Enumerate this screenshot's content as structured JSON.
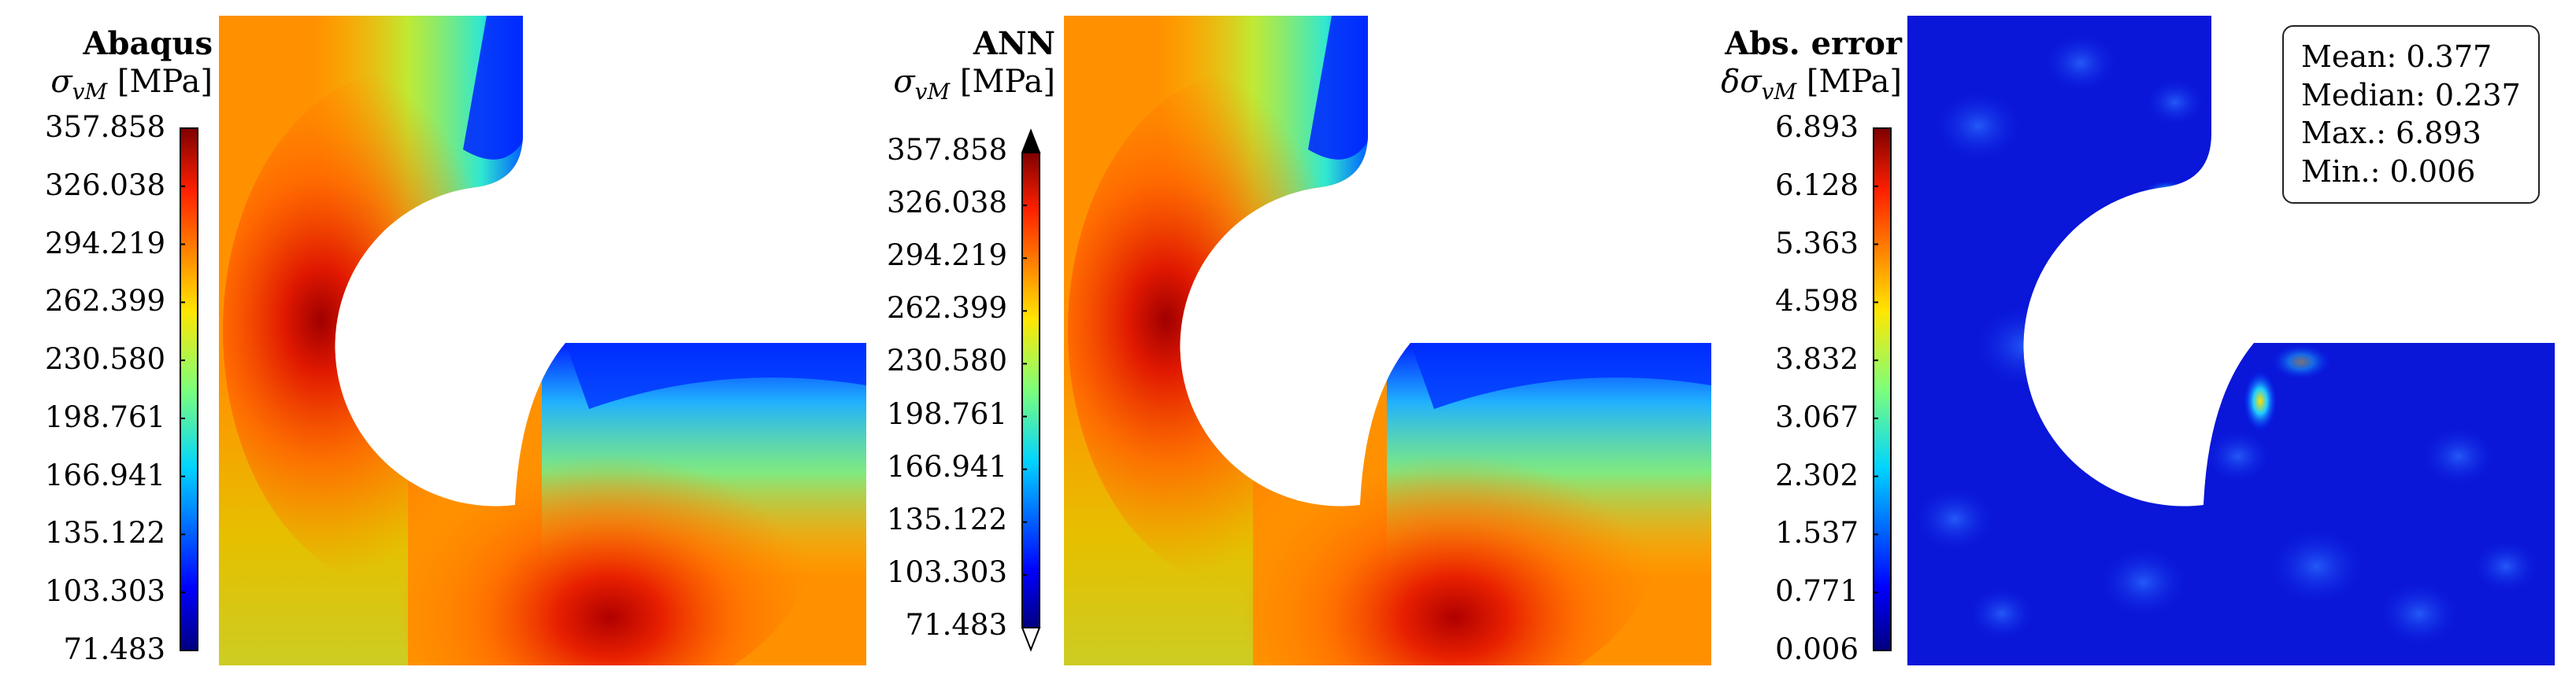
{
  "panels": [
    {
      "title": "Abaqus",
      "unit_symbol": "σ",
      "unit_subscript": "vM",
      "unit_text": "[MPa]",
      "colorbar": "jet",
      "ticks": [
        "357.858",
        "326.038",
        "294.219",
        "262.399",
        "230.580",
        "198.761",
        "166.941",
        "135.122",
        "103.303",
        "71.483"
      ]
    },
    {
      "title": "ANN",
      "unit_symbol": "σ",
      "unit_subscript": "vM",
      "unit_text": "[MPa]",
      "colorbar": "jet-extended",
      "ticks": [
        "357.858",
        "326.038",
        "294.219",
        "262.399",
        "230.580",
        "198.761",
        "166.941",
        "135.122",
        "103.303",
        "71.483"
      ]
    },
    {
      "title": "Abs. error",
      "unit_symbol": "δσ",
      "unit_subscript": "vM",
      "unit_text": "[MPa]",
      "colorbar": "jet",
      "ticks": [
        "6.893",
        "6.128",
        "5.363",
        "4.598",
        "3.832",
        "3.067",
        "2.302",
        "1.537",
        "0.771",
        "0.006"
      ]
    }
  ],
  "stats": {
    "mean": "Mean: 0.377",
    "median": "Median: 0.237",
    "max": "Max.: 6.893",
    "min": "Min.: 0.006"
  },
  "chart_data": {
    "type": "heatmap",
    "fields": [
      {
        "name": "Abaqus",
        "vmin": 71.483,
        "vmax": 357.858
      },
      {
        "name": "ANN",
        "vmin": 71.483,
        "vmax": 357.858
      },
      {
        "name": "Abs. error",
        "vmin": 0.006,
        "vmax": 6.893,
        "mean": 0.377,
        "median": 0.237,
        "max": 6.893,
        "min": 0.006
      }
    ],
    "colormap": "jet"
  }
}
